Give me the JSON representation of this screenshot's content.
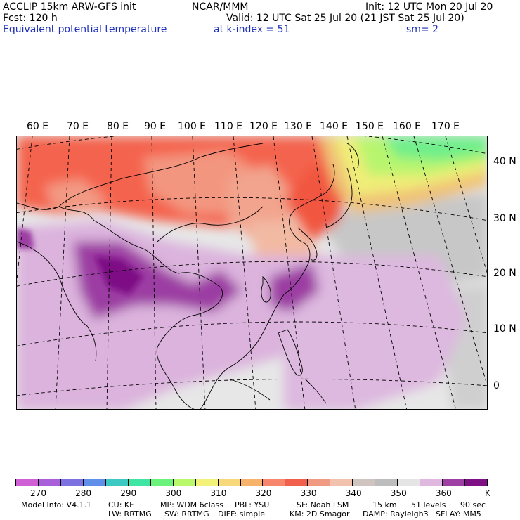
{
  "header": {
    "model": "ACCLIP 15km ARW-GFS init",
    "org": "NCAR/MMM",
    "init": "Init: 12 UTC Mon 20 Jul 20",
    "fcst": "Fcst:  120 h",
    "valid": "Valid: 12 UTC Sat 25 Jul 20 (21 JST Sat 25 Jul 20)",
    "field": "Equivalent potential temperature",
    "level": "at k-index =  51",
    "smooth": "sm= 2"
  },
  "map": {
    "lon_labels": [
      "60 E",
      "70 E",
      "80 E",
      "90 E",
      "100 E",
      "110 E",
      "120 E",
      "130 E",
      "140 E",
      "150 E",
      "160 E",
      "170 E"
    ],
    "lat_labels": [
      "40 N",
      "30 N",
      "20 N",
      "10 N",
      "0"
    ]
  },
  "colorbar": {
    "colors": [
      "#cf5fd4",
      "#a85fd9",
      "#7d70e0",
      "#5f8fe8",
      "#3cc9c2",
      "#3fe6a3",
      "#6bf27a",
      "#b9f86a",
      "#f2f178",
      "#f7d87a",
      "#f8b36b",
      "#f8866c",
      "#f0604c",
      "#f19a82",
      "#f1c2ae",
      "#cfc4c0",
      "#bdbdbd",
      "#e5e5e5",
      "#dfb7df",
      "#9d3fa3",
      "#7e0f85"
    ],
    "labels": [
      "270",
      "280",
      "290",
      "300",
      "310",
      "320",
      "330",
      "340",
      "350",
      "360"
    ],
    "unit": "K"
  },
  "footer": {
    "line1": [
      "Model Info: V4.1.1",
      "CU: KF",
      "MP: WDM 6class",
      "PBL: YSU",
      "SF: Noah LSM",
      "15 km",
      "51 levels",
      "90 sec"
    ],
    "line2": [
      "LW: RRTMG",
      "SW: RRTMG",
      "DIFF: simple",
      "KM: 2D Smagor",
      "DAMP: Rayleigh3",
      "SFLAY: MM5"
    ]
  }
}
